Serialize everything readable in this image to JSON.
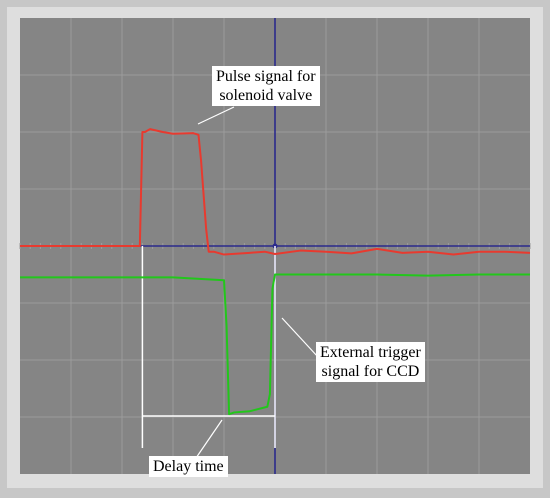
{
  "chart_data": {
    "type": "line",
    "title": "",
    "xlabel": "",
    "ylabel": "",
    "xlim": [
      -5,
      5
    ],
    "ylim": [
      -4,
      4
    ],
    "grid": true,
    "series": [
      {
        "color": "#e83a2f",
        "x": [
          -10,
          -2.65,
          -2.6,
          -2.55,
          -2.45,
          -2.2,
          -2.0,
          -1.6,
          -1.5,
          -1.45,
          -1.35,
          -1.3,
          -1.2,
          -1.0,
          -0.5,
          -0.2,
          0.0,
          0.5,
          1.0,
          1.5,
          2.0,
          2.5,
          3.0,
          3.5,
          4.0,
          4.5,
          5.0
        ],
        "y": [
          0,
          0,
          2.0,
          2.0,
          2.05,
          2.0,
          1.97,
          1.98,
          1.95,
          1.5,
          0.3,
          -0.1,
          -0.1,
          -0.15,
          -0.12,
          -0.1,
          -0.14,
          -0.08,
          -0.1,
          -0.13,
          -0.05,
          -0.12,
          -0.1,
          -0.15,
          -0.1,
          -0.1,
          -0.12
        ]
      },
      {
        "color": "#22c71b",
        "x": [
          -5,
          -2.0,
          -1.0,
          -0.95,
          -0.9,
          -0.8,
          -0.5,
          -0.15,
          -0.1,
          -0.05,
          0.0,
          0.1,
          1.0,
          2.0,
          3.0,
          4.0,
          5.0
        ],
        "y": [
          -0.55,
          -0.55,
          -0.6,
          -1.4,
          -2.95,
          -2.92,
          -2.9,
          -2.82,
          -2.6,
          -0.75,
          -0.5,
          -0.5,
          -0.5,
          -0.5,
          -0.52,
          -0.5,
          -0.5
        ]
      }
    ],
    "cursor_x": 0,
    "delay_time": {
      "start": -2.6,
      "end": 0
    },
    "annotations": [
      {
        "lines": [
          "Pulse signal for",
          "solenoid valve"
        ]
      },
      {
        "lines": [
          "External trigger",
          "signal for CCD"
        ]
      },
      {
        "lines": [
          "Delay time"
        ]
      }
    ],
    "colors": {
      "panel": "#c7c7c7",
      "screen": "#858585",
      "grid": "#9c9c9c",
      "axis": "#2b2a8c",
      "marker": "#ffffff"
    }
  }
}
